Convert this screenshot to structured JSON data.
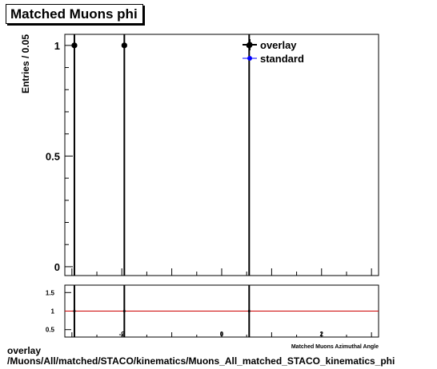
{
  "title": "Matched Muons phi",
  "footer": {
    "line1": "overlay",
    "line2": "/Muons/All/matched/STACO/kinematics/Muons_All_matched_STACO_kinematics_phi"
  },
  "colors": {
    "overlay": "#000000",
    "standard": "#0000ff",
    "ratio_line": "#cc0000"
  },
  "chart_data": [
    {
      "type": "scatter",
      "title": "Matched Muons phi",
      "ylabel": "Entries / 0.05",
      "xlim": [
        -3.1416,
        3.1416
      ],
      "ylim": [
        -0.04,
        1.05
      ],
      "yticks": [
        0,
        0.5,
        1
      ],
      "ytick_labels": [
        "0",
        "0.5",
        "1"
      ],
      "legend_position": "top-right",
      "series": [
        {
          "name": "overlay",
          "x": [
            -2.95,
            -1.95,
            0.55
          ],
          "y": [
            1,
            1,
            1
          ]
        },
        {
          "name": "standard",
          "x": [],
          "y": []
        }
      ]
    },
    {
      "type": "line",
      "xlabel": "Matched Muons Azimuthal Angle",
      "xlim": [
        -3.1416,
        3.1416
      ],
      "ylim": [
        0.3,
        1.7
      ],
      "yticks": [
        0.5,
        1,
        1.5
      ],
      "ytick_labels": [
        "0.5",
        "1",
        "1.5"
      ],
      "xticks": [
        -2,
        0,
        2
      ],
      "xtick_labels": [
        "-2",
        "0",
        "2"
      ],
      "reference_y": 1,
      "points_x": [
        -2.95,
        -1.95,
        0.55
      ]
    }
  ]
}
